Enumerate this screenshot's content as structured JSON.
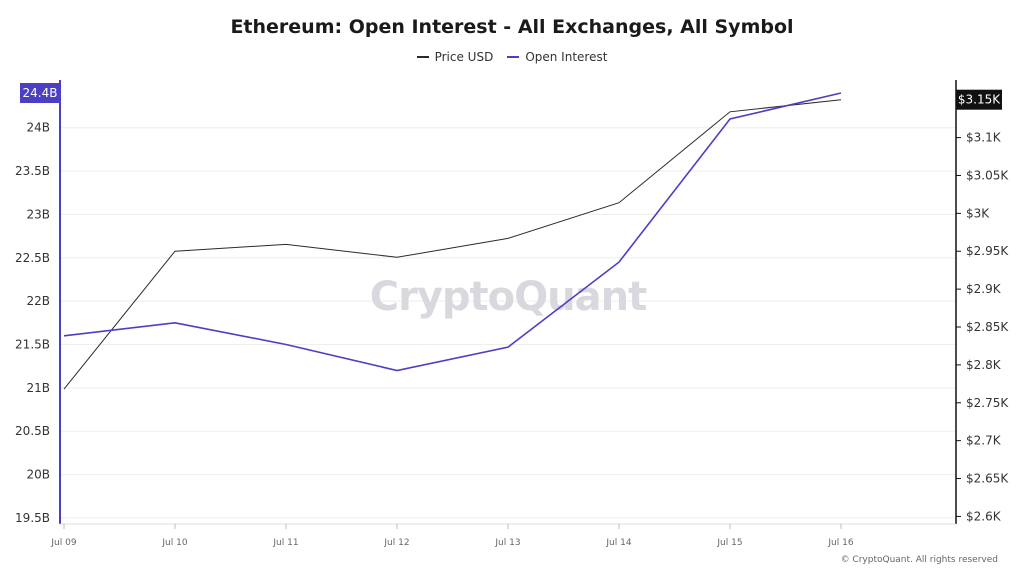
{
  "title": "Ethereum: Open Interest - All Exchanges, All Symbol",
  "watermark": "CryptoQuant",
  "copyright": "© CryptoQuant. All rights reserved",
  "colors": {
    "price": "#2b2b2b",
    "oi": "#4b3fc4",
    "grid": "#eeeeee"
  },
  "chart_data": {
    "type": "line",
    "title": "Ethereum: Open Interest - All Exchanges, All Symbol",
    "categories": [
      "Jul 09",
      "Jul 10",
      "Jul 11",
      "Jul 12",
      "Jul 13",
      "Jul 14",
      "Jul 15",
      "Jul 16"
    ],
    "series": [
      {
        "name": "Price USD",
        "axis": "right",
        "values": [
          2.768,
          2.95,
          2.959,
          2.942,
          2.967,
          3.014,
          3.134,
          3.15
        ]
      },
      {
        "name": "Open Interest",
        "axis": "left",
        "values": [
          21.6,
          21.75,
          21.5,
          21.2,
          21.47,
          22.45,
          24.1,
          24.4
        ]
      }
    ],
    "y_left": {
      "ticks": [
        19.5,
        20,
        20.5,
        21,
        21.5,
        22,
        22.5,
        23,
        23.5,
        24
      ],
      "tick_labels": [
        "19.5B",
        "20B",
        "20.5B",
        "21B",
        "21.5B",
        "22B",
        "22.5B",
        "23B",
        "23.5B",
        "24B"
      ],
      "range": [
        19.43,
        24.55
      ],
      "current_label": "24.4B"
    },
    "y_right": {
      "ticks": [
        2.6,
        2.65,
        2.7,
        2.75,
        2.8,
        2.85,
        2.9,
        2.95,
        3.0,
        3.05,
        3.1
      ],
      "tick_labels": [
        "$2.6K",
        "$2.65K",
        "$2.7K",
        "$2.75K",
        "$2.8K",
        "$2.85K",
        "$2.9K",
        "$2.95K",
        "$3K",
        "$3.05K",
        "$3.1K"
      ],
      "range": [
        2.59,
        3.176
      ],
      "current_label": "$3.15K"
    },
    "legend_position": "top-center",
    "grid": true
  }
}
